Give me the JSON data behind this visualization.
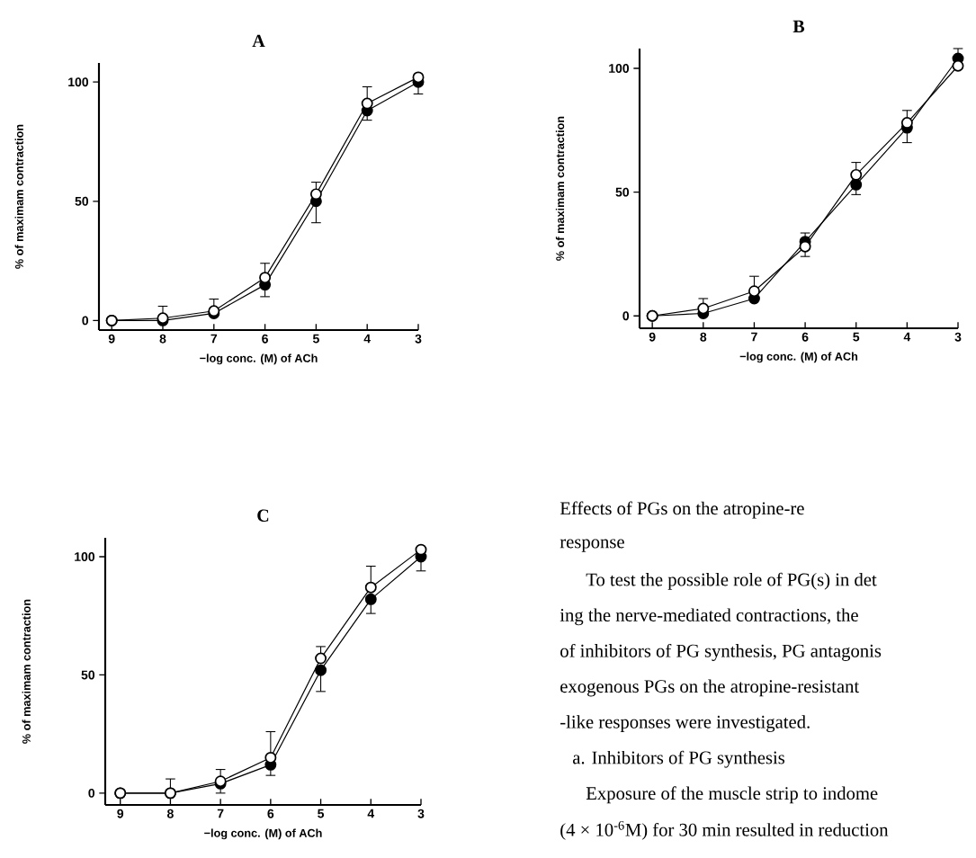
{
  "chart_data": [
    {
      "type": "line",
      "title": "A",
      "xlabel": "−log conc. (M) of ACh",
      "ylabel": "% of maximam contraction",
      "xlim": [
        9.25,
        3
      ],
      "xticks": [
        9,
        8,
        7,
        6,
        5,
        4,
        3
      ],
      "ylim": [
        -4,
        108
      ],
      "yticks": [
        0,
        50,
        100
      ],
      "marker": "circle",
      "x": [
        9,
        8,
        7,
        6,
        5,
        4,
        3
      ],
      "series": [
        {
          "color": "#000000",
          "colors": [
            "#000000",
            "#000000",
            "#000000",
            "#000000",
            "#000000",
            "#000000",
            "#000000"
          ],
          "values": [
            0,
            0,
            3,
            15,
            50,
            88,
            100
          ],
          "errors": [
            null,
            null,
            null,
            [
              10,
              15
            ],
            [
              41,
              50
            ],
            [
              84,
              88
            ],
            [
              95,
              100
            ]
          ]
        },
        {
          "color": "#000000",
          "colors": [
            "#ffffff",
            "#ffffff",
            "#ffffff",
            "#ffffff",
            "#ffffff",
            "#ffffff",
            "#ffffff"
          ],
          "values": [
            0,
            1,
            4,
            18,
            53,
            91,
            102
          ],
          "errors": [
            null,
            [
              1,
              6
            ],
            [
              4,
              9
            ],
            [
              18,
              24
            ],
            [
              53,
              58
            ],
            [
              91,
              98
            ],
            null
          ]
        }
      ]
    },
    {
      "type": "line",
      "title": "B",
      "xlabel": "−log conc. (M) of ACh",
      "ylabel": "% of maximam contraction",
      "xlim": [
        9.25,
        3
      ],
      "xticks": [
        9,
        8,
        7,
        6,
        5,
        4,
        3
      ],
      "ylim": [
        -5,
        108
      ],
      "yticks": [
        0,
        50,
        100
      ],
      "marker": "circle",
      "x": [
        9,
        8,
        7,
        6,
        5,
        4,
        3
      ],
      "series": [
        {
          "color": "#000000",
          "colors": [
            "#000000",
            "#000000",
            "#000000",
            "#000000",
            "#000000",
            "#000000",
            "#000000"
          ],
          "values": [
            0,
            1,
            7,
            30,
            53,
            76,
            104
          ],
          "errors": [
            null,
            null,
            null,
            [
              30,
              33.5
            ],
            [
              49,
              53
            ],
            [
              70,
              76
            ],
            [
              104,
              108
            ]
          ]
        },
        {
          "color": "#000000",
          "colors": [
            "#ffffff",
            "#ffffff",
            "#ffffff",
            "#ffffff",
            "#ffffff",
            "#ffffff",
            "#ffffff"
          ],
          "values": [
            0,
            3,
            10,
            28,
            57,
            78,
            101
          ],
          "errors": [
            null,
            [
              3,
              7
            ],
            [
              10,
              16
            ],
            [
              24,
              28
            ],
            [
              57,
              62
            ],
            [
              78,
              83
            ],
            null
          ]
        }
      ]
    },
    {
      "type": "line",
      "title": "C",
      "xlabel": "−log conc. (M) of ACh",
      "ylabel": "% of maximam contraction",
      "xlim": [
        9.3,
        3
      ],
      "xticks": [
        9,
        8,
        7,
        6,
        5,
        4,
        3
      ],
      "ylim": [
        -5,
        108
      ],
      "yticks": [
        0,
        50,
        100
      ],
      "marker": "circle",
      "x": [
        9,
        8,
        7,
        6,
        5,
        4,
        3
      ],
      "series": [
        {
          "color": "#000000",
          "colors": [
            "#000000",
            "#000000",
            "#000000",
            "#000000",
            "#000000",
            "#000000",
            "#000000"
          ],
          "values": [
            0,
            0,
            4,
            12,
            52,
            82,
            100
          ],
          "errors": [
            null,
            null,
            [
              0,
              4
            ],
            [
              7.5,
              12
            ],
            [
              43,
              52
            ],
            [
              76,
              82
            ],
            [
              94,
              100
            ]
          ]
        },
        {
          "color": "#000000",
          "colors": [
            "#ffffff",
            "#ffffff",
            "#ffffff",
            "#ffffff",
            "#ffffff",
            "#ffffff",
            "#ffffff"
          ],
          "values": [
            0,
            0,
            5,
            15,
            57,
            87,
            103
          ],
          "errors": [
            null,
            [
              0,
              6
            ],
            [
              5,
              10
            ],
            [
              15,
              26
            ],
            [
              57,
              62
            ],
            [
              87,
              96
            ],
            null
          ]
        }
      ]
    },
    {
      "type": "other",
      "annotations": [
        "Effects of PGs on the atropine-re",
        "response",
        "To test the possible role of PG(s) in det",
        "ing the nerve-mediated contractions, the",
        "of inhibitors of PG synthesis, PG antagonis",
        "exogenous PGs on the atropine-resistant",
        "-like responses were investigated.",
        "a. Inhibitors of PG synthesis",
        "Exposure of the muscle strip to indome",
        "(4 × 10$^{-6}$M) for 30 min resulted in reduction"
      ]
    }
  ]
}
